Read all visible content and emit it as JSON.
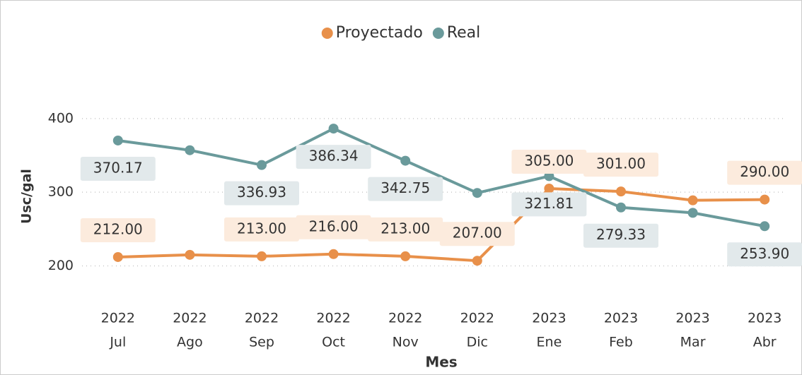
{
  "chart_data": {
    "type": "line",
    "x_label": "Mes",
    "y_label": "Usc/gal",
    "categories": [
      [
        "2022",
        "Jul"
      ],
      [
        "2022",
        "Ago"
      ],
      [
        "2022",
        "Sep"
      ],
      [
        "2022",
        "Oct"
      ],
      [
        "2022",
        "Nov"
      ],
      [
        "2022",
        "Dic"
      ],
      [
        "2023",
        "Ene"
      ],
      [
        "2023",
        "Feb"
      ],
      [
        "2023",
        "Mar"
      ],
      [
        "2023",
        "Abr"
      ]
    ],
    "series": [
      {
        "name": "Proyectado",
        "color": "#e8904a",
        "label_bg": "#fcebdd",
        "values": [
          212,
          215,
          213,
          216,
          213,
          207,
          305,
          301,
          289,
          290
        ],
        "value_labels": [
          "212.00",
          null,
          "213.00",
          "216.00",
          "213.00",
          "207.00",
          "305.00",
          "301.00",
          null,
          "290.00"
        ]
      },
      {
        "name": "Real",
        "color": "#6a9a9b",
        "label_bg": "#e2e9eb",
        "values": [
          370.17,
          357,
          336.93,
          386.34,
          342.75,
          299,
          321.81,
          279.33,
          272,
          253.9
        ],
        "value_labels": [
          "370.17",
          null,
          "336.93",
          "386.34",
          "342.75",
          null,
          "321.81",
          "279.33",
          null,
          "253.90"
        ]
      }
    ],
    "ylim": [
      165,
      420
    ],
    "yticks": [
      200,
      300,
      400
    ],
    "grid": true,
    "legend": "top"
  }
}
